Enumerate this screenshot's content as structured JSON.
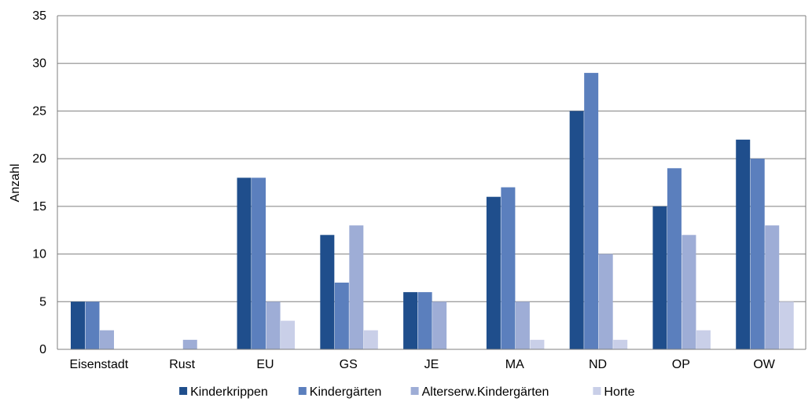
{
  "chart_data": {
    "type": "bar",
    "title": "",
    "xlabel": "",
    "ylabel": "Anzahl",
    "ylim": [
      0,
      35
    ],
    "yticks": [
      0,
      5,
      10,
      15,
      20,
      25,
      30,
      35
    ],
    "grid": true,
    "legend_position": "bottom",
    "categories": [
      "Eisenstadt",
      "Rust",
      "EU",
      "GS",
      "JE",
      "MA",
      "ND",
      "OP",
      "OW"
    ],
    "series": [
      {
        "name": "Kinderkrippen",
        "color": "#1f4e8c",
        "values": [
          5,
          0,
          18,
          12,
          6,
          16,
          25,
          15,
          22
        ]
      },
      {
        "name": "Kindergärten",
        "color": "#5b7fbd",
        "values": [
          5,
          0,
          18,
          7,
          6,
          17,
          29,
          19,
          20
        ]
      },
      {
        "name": "Alterserw.Kindergärten",
        "color": "#9eadd6",
        "values": [
          2,
          1,
          5,
          13,
          5,
          5,
          10,
          12,
          13
        ]
      },
      {
        "name": "Horte",
        "color": "#c9cfe8",
        "values": [
          0,
          0,
          3,
          2,
          0,
          1,
          1,
          2,
          5
        ]
      }
    ]
  }
}
